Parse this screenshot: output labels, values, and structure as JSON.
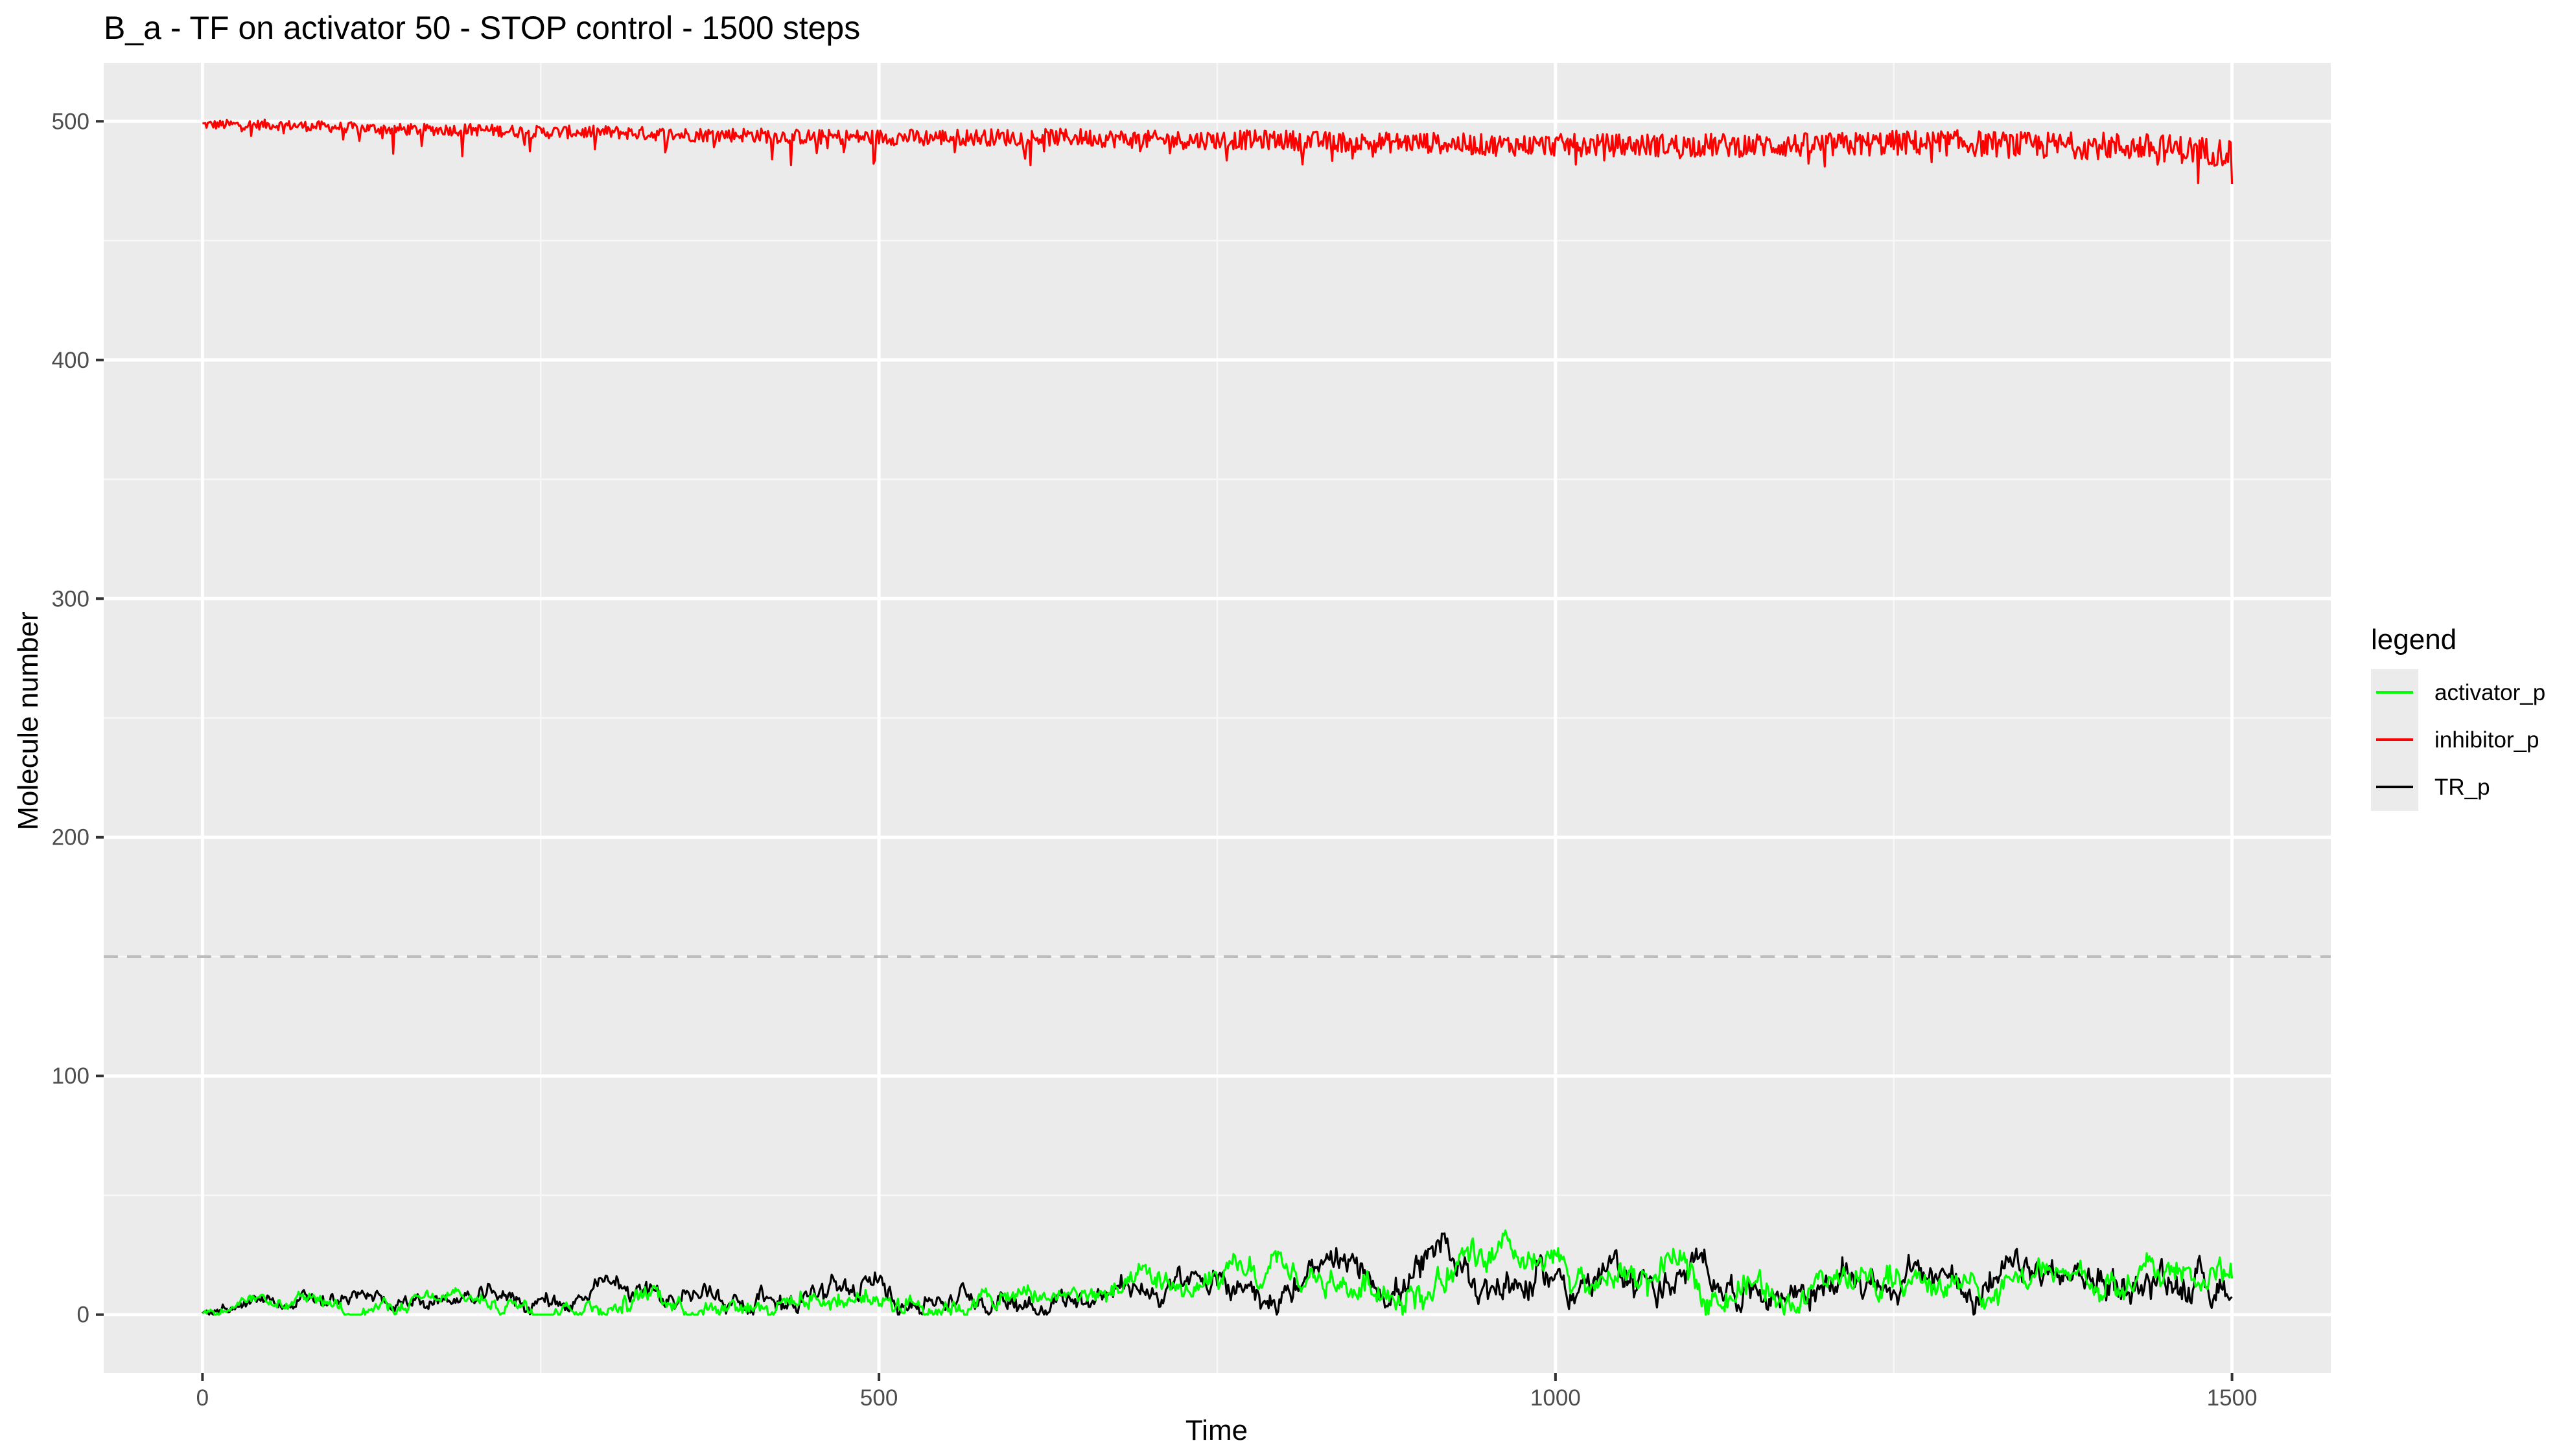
{
  "chart_data": {
    "type": "line",
    "title": "B_a - TF on activator 50 - STOP control - 1500 steps",
    "xlabel": "Time",
    "ylabel": "Molecule number",
    "xlim": [
      -73,
      1573
    ],
    "ylim": [
      -24.5,
      524.5
    ],
    "x_ticks": [
      0,
      500,
      1000,
      1500
    ],
    "x_tick_labels": [
      "0",
      "500",
      "1000",
      "1500"
    ],
    "y_ticks": [
      0,
      100,
      200,
      300,
      400,
      500
    ],
    "y_tick_labels": [
      "0",
      "100",
      "200",
      "300",
      "400",
      "500"
    ],
    "grid": true,
    "reference_line": {
      "y": 150,
      "style": "dashed",
      "color": "#bdbdbd"
    },
    "legend": {
      "title": "legend",
      "position": "right",
      "entries": [
        {
          "label": "activator_p",
          "color": "#00ff00"
        },
        {
          "label": "inhibitor_p",
          "color": "#ff0000"
        },
        {
          "label": "TR_p",
          "color": "#000000"
        }
      ]
    },
    "x": [
      0,
      50,
      100,
      150,
      200,
      250,
      300,
      350,
      400,
      450,
      500,
      550,
      600,
      650,
      700,
      750,
      800,
      850,
      900,
      950,
      1000,
      1050,
      1100,
      1150,
      1200,
      1250,
      1300,
      1350,
      1400,
      1450,
      1500
    ],
    "series": [
      {
        "name": "activator_p",
        "color": "#00ff00",
        "values": [
          1,
          3,
          4,
          4,
          5,
          5,
          7,
          7,
          7,
          8,
          8,
          7,
          7,
          8,
          9,
          10,
          13,
          12,
          15,
          16,
          13,
          14,
          14,
          12,
          12,
          13,
          14,
          12,
          12,
          15,
          16
        ]
      },
      {
        "name": "inhibitor_p",
        "color": "#ff0000",
        "values": [
          499,
          499,
          498,
          497,
          497,
          496,
          496,
          495,
          495,
          494,
          494,
          494,
          494,
          494,
          493,
          493,
          493,
          492,
          492,
          491,
          491,
          491,
          491,
          491,
          491,
          492,
          492,
          491,
          491,
          490,
          488
        ]
      },
      {
        "name": "TR_p",
        "color": "#000000",
        "values": [
          2,
          4,
          5,
          5,
          6,
          6,
          8,
          8,
          8,
          9,
          9,
          8,
          8,
          9,
          10,
          11,
          13,
          13,
          16,
          17,
          14,
          14,
          15,
          13,
          13,
          14,
          14,
          13,
          13,
          15,
          16
        ]
      }
    ]
  }
}
